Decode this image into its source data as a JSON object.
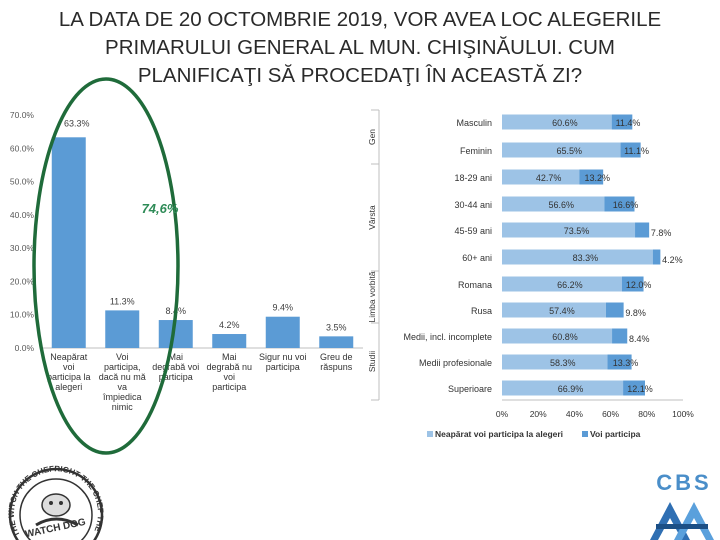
{
  "title_lines": [
    "LA DATA DE 20 OCTOMBRIE 2019, VOR AVEA LOC ALEGERILE",
    "PRIMARULUI GENERAL AL MUN. CHIŞINĂULUI. CUM",
    "PLANIFICAŢI SĂ PROCEDAŢI ÎN ACEASTĂ ZI?"
  ],
  "colors": {
    "dark": "#5b9bd5",
    "light": "#9dc3e6",
    "oval": "#1f6b3a",
    "highlight": "#2e8b57"
  },
  "chart_data": [
    {
      "type": "bar",
      "categories": [
        [
          "Neapărat",
          "voi",
          "participa la",
          "alegeri"
        ],
        [
          "Voi",
          "participa,",
          "dacă nu mă",
          "va",
          "împiedica",
          "nimic"
        ],
        [
          "Mai",
          "degrabă voi",
          "participa"
        ],
        [
          "Mai",
          "degrabă nu",
          "voi",
          "participa"
        ],
        [
          "Sigur nu voi",
          "participa"
        ],
        [
          "Greu de",
          "răspuns"
        ]
      ],
      "values": [
        63.3,
        11.3,
        8.4,
        4.2,
        9.4,
        3.5
      ],
      "data_labels": [
        "63.3%",
        "11.3%",
        "8.4%",
        "4.2%",
        "9.4%",
        "3.5%"
      ],
      "y_ticks": [
        "0.0%",
        "10.0%",
        "20.0%",
        "30.0%",
        "40.0%",
        "50.0%",
        "60.0%",
        "70.0%"
      ],
      "ylim": [
        0,
        70
      ],
      "annotation": "74,6%"
    },
    {
      "type": "bar",
      "orientation": "horizontal",
      "stacked": true,
      "groups": [
        {
          "label": "Gen",
          "rows": [
            0,
            1
          ]
        },
        {
          "label": "Vârsta",
          "rows": [
            2,
            3,
            4,
            5
          ]
        },
        {
          "label": "Limba vorbită",
          "rows": [
            6,
            7
          ]
        },
        {
          "label": "Studii",
          "rows": [
            8,
            9,
            10
          ]
        }
      ],
      "categories": [
        "Masculin",
        "Feminin",
        "18-29 ani",
        "30-44 ani",
        "45-59 ani",
        "60+ ani",
        "Romana",
        "Rusa",
        "Medii, incl. incomplete",
        "Medii profesionale",
        "Superioare"
      ],
      "series": [
        {
          "name": "Neapărat voi participa la alegeri",
          "values": [
            60.6,
            65.5,
            42.7,
            56.6,
            73.5,
            83.3,
            66.2,
            57.4,
            60.8,
            58.3,
            66.9
          ],
          "labels": [
            "60.6%",
            "65.5%",
            "42.7%",
            "56.6%",
            "73.5%",
            "83.3%",
            "66.2%",
            "57.4%",
            "60.8%",
            "58.3%",
            "66.9%"
          ]
        },
        {
          "name": "Voi participa",
          "values": [
            11.4,
            11.1,
            13.2,
            16.6,
            7.8,
            4.2,
            12.0,
            9.8,
            8.4,
            13.3,
            12.1
          ],
          "labels": [
            "11.4%",
            "11.1%",
            "13.2%",
            "16.6%",
            "7.8%",
            "4.2%",
            "12.0%",
            "9.8%",
            "8.4%",
            "13.3%",
            "12.1%"
          ]
        }
      ],
      "x_ticks": [
        "0%",
        "20%",
        "40%",
        "60%",
        "80%",
        "100%"
      ],
      "xlim": [
        0,
        100
      ]
    }
  ],
  "logos": {
    "left_text": "THE WITCH THE CHEFRIGHT THE CHEF THE WITCH",
    "left_name": "WATCH DOG",
    "right_text": "CBS",
    "right_subtext": "AXA"
  }
}
